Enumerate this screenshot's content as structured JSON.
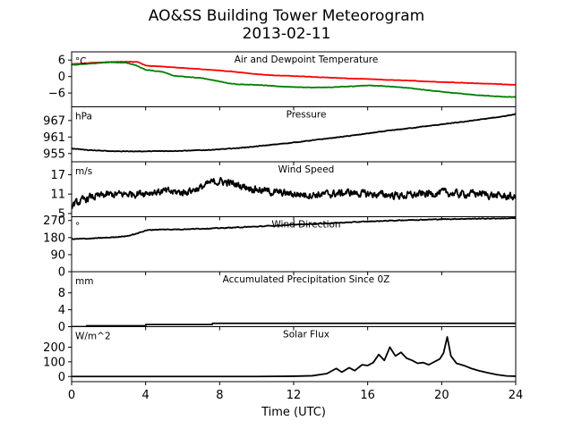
{
  "chart_data": {
    "type": "line",
    "title": "AO&SS Building Tower Meteorogram",
    "subtitle": "2013-02-11",
    "xlabel": "Time (UTC)",
    "xlim": [
      0,
      24
    ],
    "xticks": [
      0,
      4,
      8,
      12,
      16,
      20,
      24
    ],
    "panels": [
      {
        "key": "temp",
        "title": "Air and Dewpoint Temperature",
        "unit": "°C",
        "ylim": [
          -11,
          9
        ],
        "yticks": [
          6,
          0,
          -6
        ],
        "series": [
          {
            "color": "#ff0000",
            "noise": 0.12,
            "x": [
              0,
              1,
              2,
              3,
              3.6,
              4,
              5,
              6,
              7,
              8,
              9,
              10,
              11,
              12,
              13,
              14,
              15,
              16,
              17,
              18,
              19,
              20,
              21,
              22,
              23,
              24
            ],
            "values": [
              4.5,
              5.0,
              5.3,
              5.4,
              5.3,
              4.0,
              3.6,
              3.1,
              2.7,
              2.2,
              1.6,
              0.9,
              0.4,
              0.2,
              -0.1,
              -0.4,
              -0.7,
              -0.9,
              -1.2,
              -1.4,
              -1.7,
              -2.0,
              -2.2,
              -2.5,
              -2.7,
              -3.0
            ]
          },
          {
            "color": "#008000",
            "noise": 0.15,
            "x": [
              0,
              1,
              2,
              3,
              3.5,
              4,
              5,
              5.5,
              6,
              7,
              7.8,
              8.5,
              9,
              10,
              11,
              12,
              13,
              14,
              15,
              16,
              17,
              18,
              19,
              20,
              21,
              22,
              23,
              24
            ],
            "values": [
              4.2,
              4.7,
              5.2,
              5.0,
              4.0,
              2.5,
              1.6,
              0.3,
              0.0,
              -0.5,
              -1.5,
              -2.5,
              -2.8,
              -3.0,
              -3.5,
              -3.8,
              -4.0,
              -3.9,
              -3.6,
              -3.2,
              -3.5,
              -4.0,
              -4.8,
              -5.5,
              -6.2,
              -6.8,
              -7.2,
              -7.5
            ]
          }
        ]
      },
      {
        "key": "pressure",
        "title": "Pressure",
        "unit": "hPa",
        "ylim": [
          952,
          972
        ],
        "yticks": [
          967,
          961,
          955
        ],
        "series": [
          {
            "color": "#000000",
            "noise": 0.2,
            "x": [
              0,
              1,
              2,
              3,
              4,
              5,
              6,
              7,
              8,
              9,
              10,
              11,
              12,
              13,
              14,
              15,
              16,
              17,
              18,
              19,
              20,
              21,
              22,
              23,
              24
            ],
            "values": [
              956.8,
              956.2,
              955.9,
              955.8,
              955.8,
              955.9,
              956.0,
              956.2,
              956.5,
              957.0,
              957.6,
              958.3,
              959.0,
              959.8,
              960.6,
              961.4,
              962.3,
              963.2,
              964.0,
              964.8,
              965.6,
              966.4,
              967.3,
              968.2,
              969.3
            ]
          }
        ]
      },
      {
        "key": "wind_speed",
        "title": "Wind Speed",
        "unit": "m/s",
        "ylim": [
          4,
          21
        ],
        "yticks": [
          17,
          11,
          5
        ],
        "series": [
          {
            "color": "#000000",
            "noise": 2.0,
            "x": [
              0,
              1,
              2,
              3,
              4,
              5,
              6,
              7,
              7.5,
              8,
              8.5,
              9,
              10,
              11,
              12,
              13,
              14,
              15,
              16,
              17,
              18,
              19,
              20,
              21,
              22,
              23,
              24
            ],
            "values": [
              7.5,
              10.0,
              10.8,
              11.0,
              11.5,
              11.8,
              11.5,
              13.0,
              14.5,
              15.0,
              14.5,
              13.8,
              12.5,
              11.5,
              11.0,
              10.8,
              11.0,
              11.5,
              11.0,
              10.8,
              10.5,
              11.0,
              11.5,
              11.0,
              11.2,
              10.5,
              10.0
            ]
          }
        ]
      },
      {
        "key": "wind_dir",
        "title": "Wind Direction",
        "unit": "°",
        "ylim": [
          0,
          290
        ],
        "yticks": [
          270,
          180,
          90,
          0
        ],
        "series": [
          {
            "color": "#000000",
            "noise": 3.5,
            "x": [
              0,
              1,
              2,
              3,
              3.5,
              4,
              4.5,
              6,
              8,
              10,
              12,
              14,
              16,
              18,
              20,
              22,
              24
            ],
            "values": [
              172,
              175,
              180,
              188,
              200,
              218,
              222,
              224,
              230,
              238,
              248,
              256,
              265,
              272,
              277,
              280,
              282
            ]
          }
        ]
      },
      {
        "key": "precip",
        "title": "Accumulated Precipitation Since 0Z",
        "unit": "mm",
        "ylim": [
          0,
          13
        ],
        "yticks": [
          8,
          4,
          0
        ],
        "series": [
          {
            "color": "#000000",
            "noise": 0,
            "x": [
              0,
              0.8,
              0.81,
              4.0,
              4.01,
              7.6,
              7.61,
              24
            ],
            "values": [
              0.0,
              0.0,
              0.2,
              0.2,
              0.5,
              0.5,
              0.8,
              0.8
            ]
          }
        ]
      },
      {
        "key": "solar",
        "title": "Solar Flux",
        "unit": "W/m^2",
        "ylim": [
          -35,
          340
        ],
        "yticks": [
          200,
          100,
          0
        ],
        "series": [
          {
            "color": "#000000",
            "noise": 0,
            "x": [
              0,
              10,
              12,
              13,
              13.8,
              14.3,
              14.6,
              15.0,
              15.3,
              15.7,
              16.0,
              16.3,
              16.6,
              16.9,
              17.2,
              17.5,
              17.8,
              18.1,
              18.4,
              18.7,
              19.0,
              19.3,
              19.6,
              19.9,
              20.1,
              20.3,
              20.5,
              20.8,
              21.2,
              21.6,
              22.0,
              22.5,
              23.0,
              23.5,
              24
            ],
            "values": [
              0,
              0,
              2,
              5,
              20,
              55,
              30,
              60,
              40,
              80,
              75,
              95,
              150,
              110,
              200,
              140,
              165,
              125,
              110,
              90,
              95,
              80,
              100,
              120,
              160,
              270,
              140,
              90,
              75,
              55,
              40,
              25,
              12,
              4,
              2
            ]
          }
        ]
      }
    ]
  }
}
